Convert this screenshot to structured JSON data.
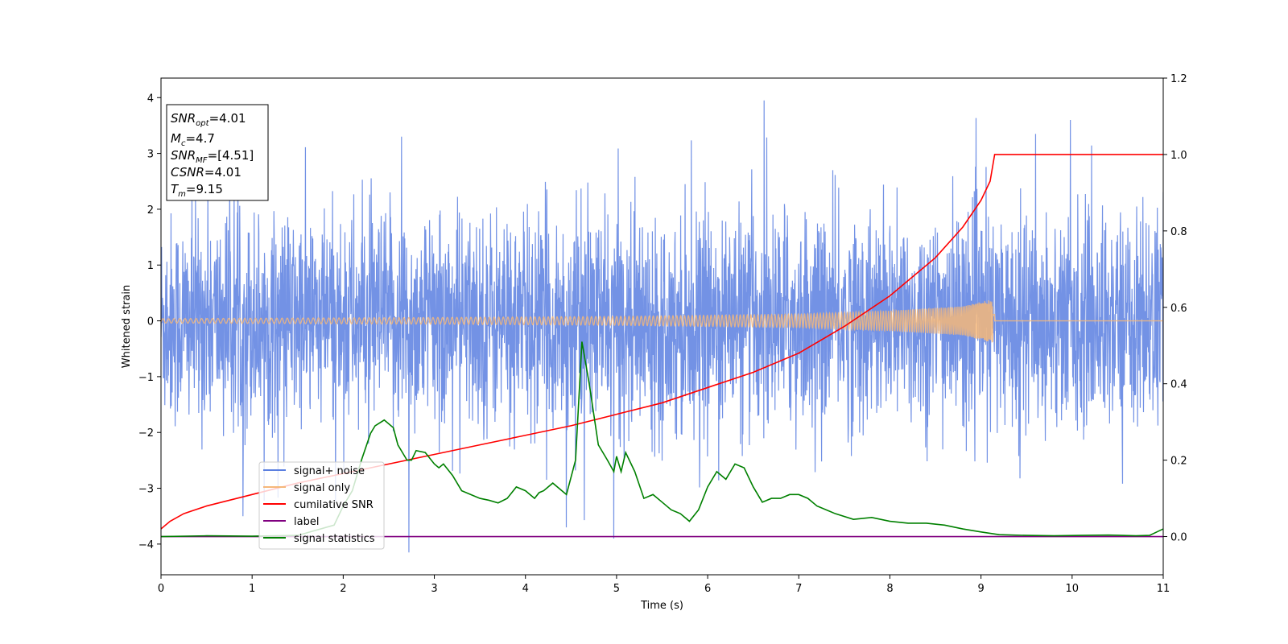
{
  "chart_data": {
    "type": "line",
    "xlabel": "Time (s)",
    "ylabel": "Whitened strain",
    "xlim": [
      0,
      11
    ],
    "ylim_left": [
      -4.55,
      4.35
    ],
    "ylim_right": [
      -0.1,
      1.2
    ],
    "x_ticks": [
      0,
      1,
      2,
      3,
      4,
      5,
      6,
      7,
      8,
      9,
      10,
      11
    ],
    "y_ticks_left": [
      -4,
      -3,
      -2,
      -1,
      0,
      1,
      2,
      3,
      4
    ],
    "y_ticks_right": [
      0.0,
      0.2,
      0.4,
      0.6,
      0.8,
      1.0,
      1.2
    ],
    "y_tick_labels_left": [
      "−4",
      "−3",
      "−2",
      "−1",
      "0",
      "1",
      "2",
      "3",
      "4"
    ],
    "y_tick_labels_right": [
      "0.0",
      "0.2",
      "0.4",
      "0.6",
      "0.8",
      "1.0",
      "1.2"
    ],
    "grid": false,
    "legend_position": "lower-left",
    "annotation": {
      "lines": [
        {
          "sym": "SNR",
          "sub": "opt",
          "rest": "=4.01"
        },
        {
          "sym": "M",
          "sub": "c",
          "rest": "=4.7"
        },
        {
          "sym": "SNR",
          "sub": "MF",
          "rest": "=[4.51]"
        },
        {
          "sym": "CSNR",
          "sub": "",
          "rest": "=4.01"
        },
        {
          "sym": "T",
          "sub": "m",
          "rest": "=9.15"
        }
      ]
    },
    "series": [
      {
        "name": "signal+ noise",
        "axis": "left",
        "color": "#5b7fe0",
        "style": "dense noise, roughly ±2 with peaks to ±4",
        "notable_peaks": [
          {
            "x": 6.62,
            "y": 3.95
          },
          {
            "x": 9.6,
            "y": 3.35
          },
          {
            "x": 9.98,
            "y": 3.6
          },
          {
            "x": 2.72,
            "y": -4.15
          },
          {
            "x": 4.45,
            "y": -3.7
          },
          {
            "x": 4.97,
            "y": -3.9
          },
          {
            "x": 0.9,
            "y": -3.5
          },
          {
            "x": 2.64,
            "y": 3.3
          }
        ]
      },
      {
        "name": "signal only",
        "axis": "left",
        "color": "#f5b77a",
        "style": "chirp oscillation growing in amplitude until merger",
        "amplitude_envelope": [
          [
            0,
            0.04
          ],
          [
            3,
            0.06
          ],
          [
            5,
            0.08
          ],
          [
            7,
            0.12
          ],
          [
            8,
            0.18
          ],
          [
            8.8,
            0.26
          ],
          [
            9.15,
            0.4
          ],
          [
            9.16,
            0.0
          ],
          [
            11,
            0.0
          ]
        ]
      },
      {
        "name": "cumilative SNR",
        "axis": "right",
        "color": "#ff0000",
        "x": [
          0,
          0.1,
          0.25,
          0.5,
          1,
          1.5,
          2,
          2.5,
          3,
          3.5,
          4,
          4.5,
          5,
          5.5,
          6,
          6.5,
          7,
          7.5,
          8,
          8.5,
          8.8,
          9.0,
          9.1,
          9.15,
          11
        ],
        "y": [
          0.02,
          0.04,
          0.06,
          0.08,
          0.11,
          0.14,
          0.165,
          0.19,
          0.215,
          0.24,
          0.265,
          0.29,
          0.32,
          0.35,
          0.39,
          0.43,
          0.48,
          0.55,
          0.63,
          0.73,
          0.81,
          0.88,
          0.93,
          1.0,
          1.0
        ]
      },
      {
        "name": "label",
        "axis": "right",
        "color": "#800080",
        "x": [
          0,
          11
        ],
        "y": [
          0.0,
          0.0
        ]
      },
      {
        "name": "signal statistics",
        "axis": "right",
        "color": "#008000",
        "x": [
          0,
          0.5,
          1,
          1.5,
          1.9,
          2.0,
          2.1,
          2.2,
          2.3,
          2.35,
          2.45,
          2.55,
          2.6,
          2.7,
          2.75,
          2.8,
          2.9,
          3.0,
          3.05,
          3.1,
          3.2,
          3.3,
          3.4,
          3.5,
          3.6,
          3.7,
          3.8,
          3.9,
          4.0,
          4.05,
          4.1,
          4.15,
          4.2,
          4.3,
          4.4,
          4.45,
          4.55,
          4.62,
          4.7,
          4.8,
          4.9,
          4.97,
          5.0,
          5.05,
          5.1,
          5.2,
          5.3,
          5.4,
          5.5,
          5.6,
          5.7,
          5.8,
          5.9,
          6.0,
          6.1,
          6.2,
          6.3,
          6.4,
          6.5,
          6.6,
          6.7,
          6.8,
          6.9,
          7.0,
          7.1,
          7.2,
          7.4,
          7.6,
          7.8,
          8.0,
          8.2,
          8.4,
          8.6,
          8.8,
          9.0,
          9.2,
          9.5,
          9.8,
          10.1,
          10.4,
          10.7,
          10.85,
          11.0
        ],
        "y": [
          0.0,
          0.002,
          0.001,
          0.003,
          0.03,
          0.08,
          0.12,
          0.2,
          0.27,
          0.29,
          0.305,
          0.285,
          0.24,
          0.2,
          0.2,
          0.225,
          0.22,
          0.19,
          0.18,
          0.19,
          0.16,
          0.12,
          0.11,
          0.1,
          0.095,
          0.088,
          0.1,
          0.13,
          0.12,
          0.11,
          0.1,
          0.115,
          0.12,
          0.14,
          0.12,
          0.11,
          0.2,
          0.51,
          0.4,
          0.24,
          0.2,
          0.17,
          0.21,
          0.17,
          0.22,
          0.17,
          0.1,
          0.11,
          0.09,
          0.07,
          0.06,
          0.04,
          0.07,
          0.13,
          0.17,
          0.15,
          0.19,
          0.18,
          0.13,
          0.09,
          0.1,
          0.1,
          0.11,
          0.11,
          0.1,
          0.08,
          0.06,
          0.045,
          0.05,
          0.04,
          0.035,
          0.035,
          0.03,
          0.02,
          0.012,
          0.005,
          0.003,
          0.002,
          0.003,
          0.004,
          0.002,
          0.003,
          0.02
        ]
      }
    ]
  }
}
